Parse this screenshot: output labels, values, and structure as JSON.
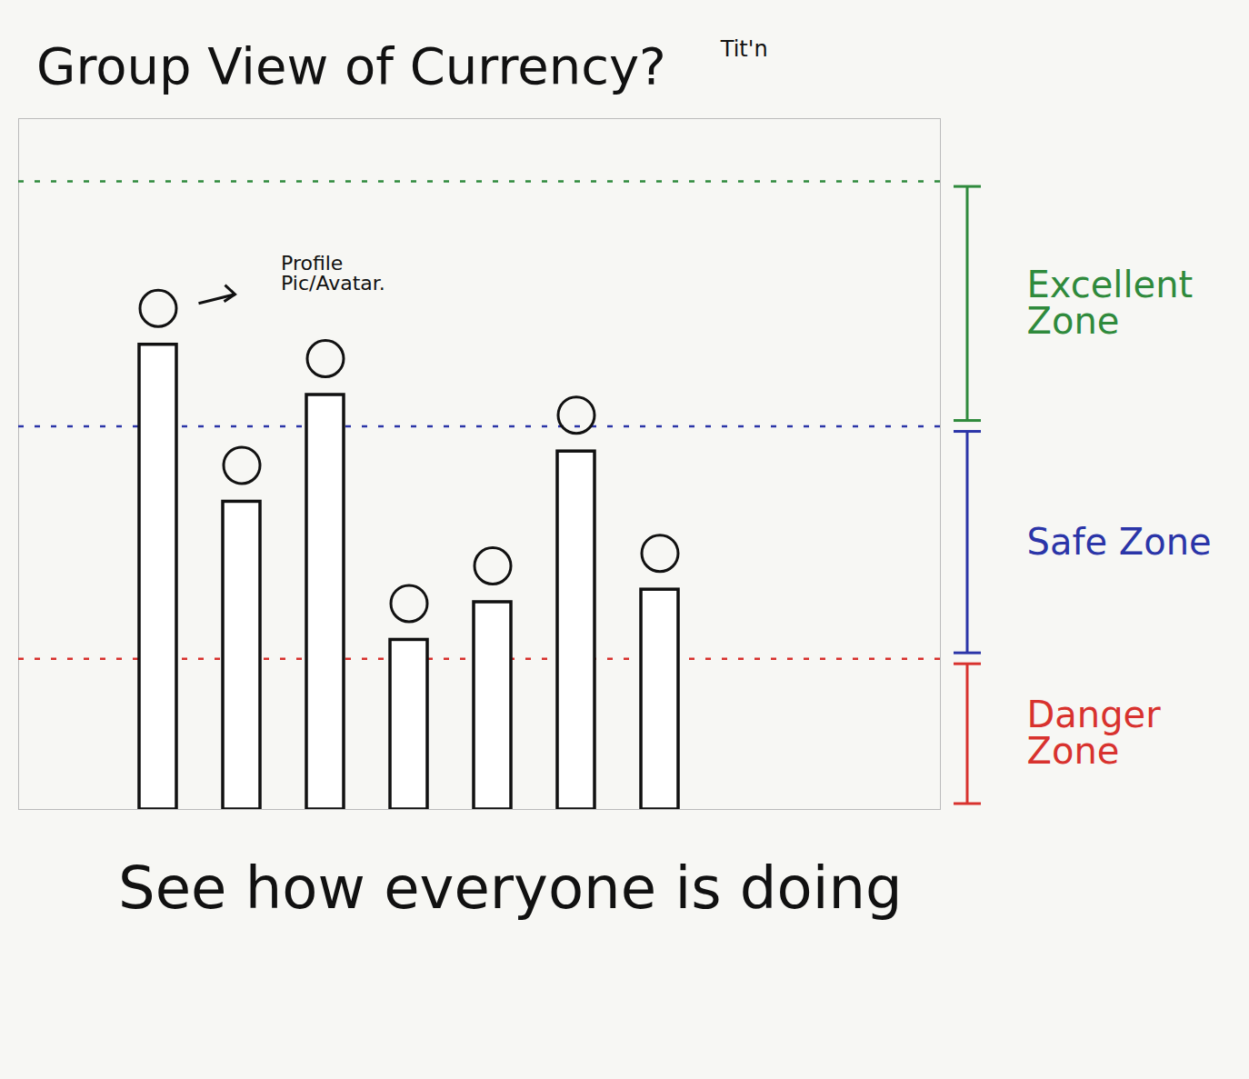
{
  "chart_data": {
    "type": "bar",
    "title": "Group View of Currency?",
    "subtitle": "Tit'n",
    "caption": "See how everyone is doing",
    "annotation": "Profile Pic/Avatar.",
    "categories": [
      null,
      null,
      null,
      null,
      null,
      null,
      null
    ],
    "values": [
      74,
      49,
      66,
      27,
      33,
      57,
      35
    ],
    "color": "#ffffff",
    "ylim": [
      0,
      110
    ],
    "tick_labels": false,
    "zones": [
      {
        "label": "Excellent Zone",
        "color": "#2f8a3c",
        "range": [
          61,
          100
        ]
      },
      {
        "label": "Safe Zone",
        "color": "#2b35a8",
        "range": [
          24,
          61
        ]
      },
      {
        "label": "Danger Zone",
        "color": "#d8322e",
        "range": [
          0,
          24
        ]
      }
    ]
  }
}
